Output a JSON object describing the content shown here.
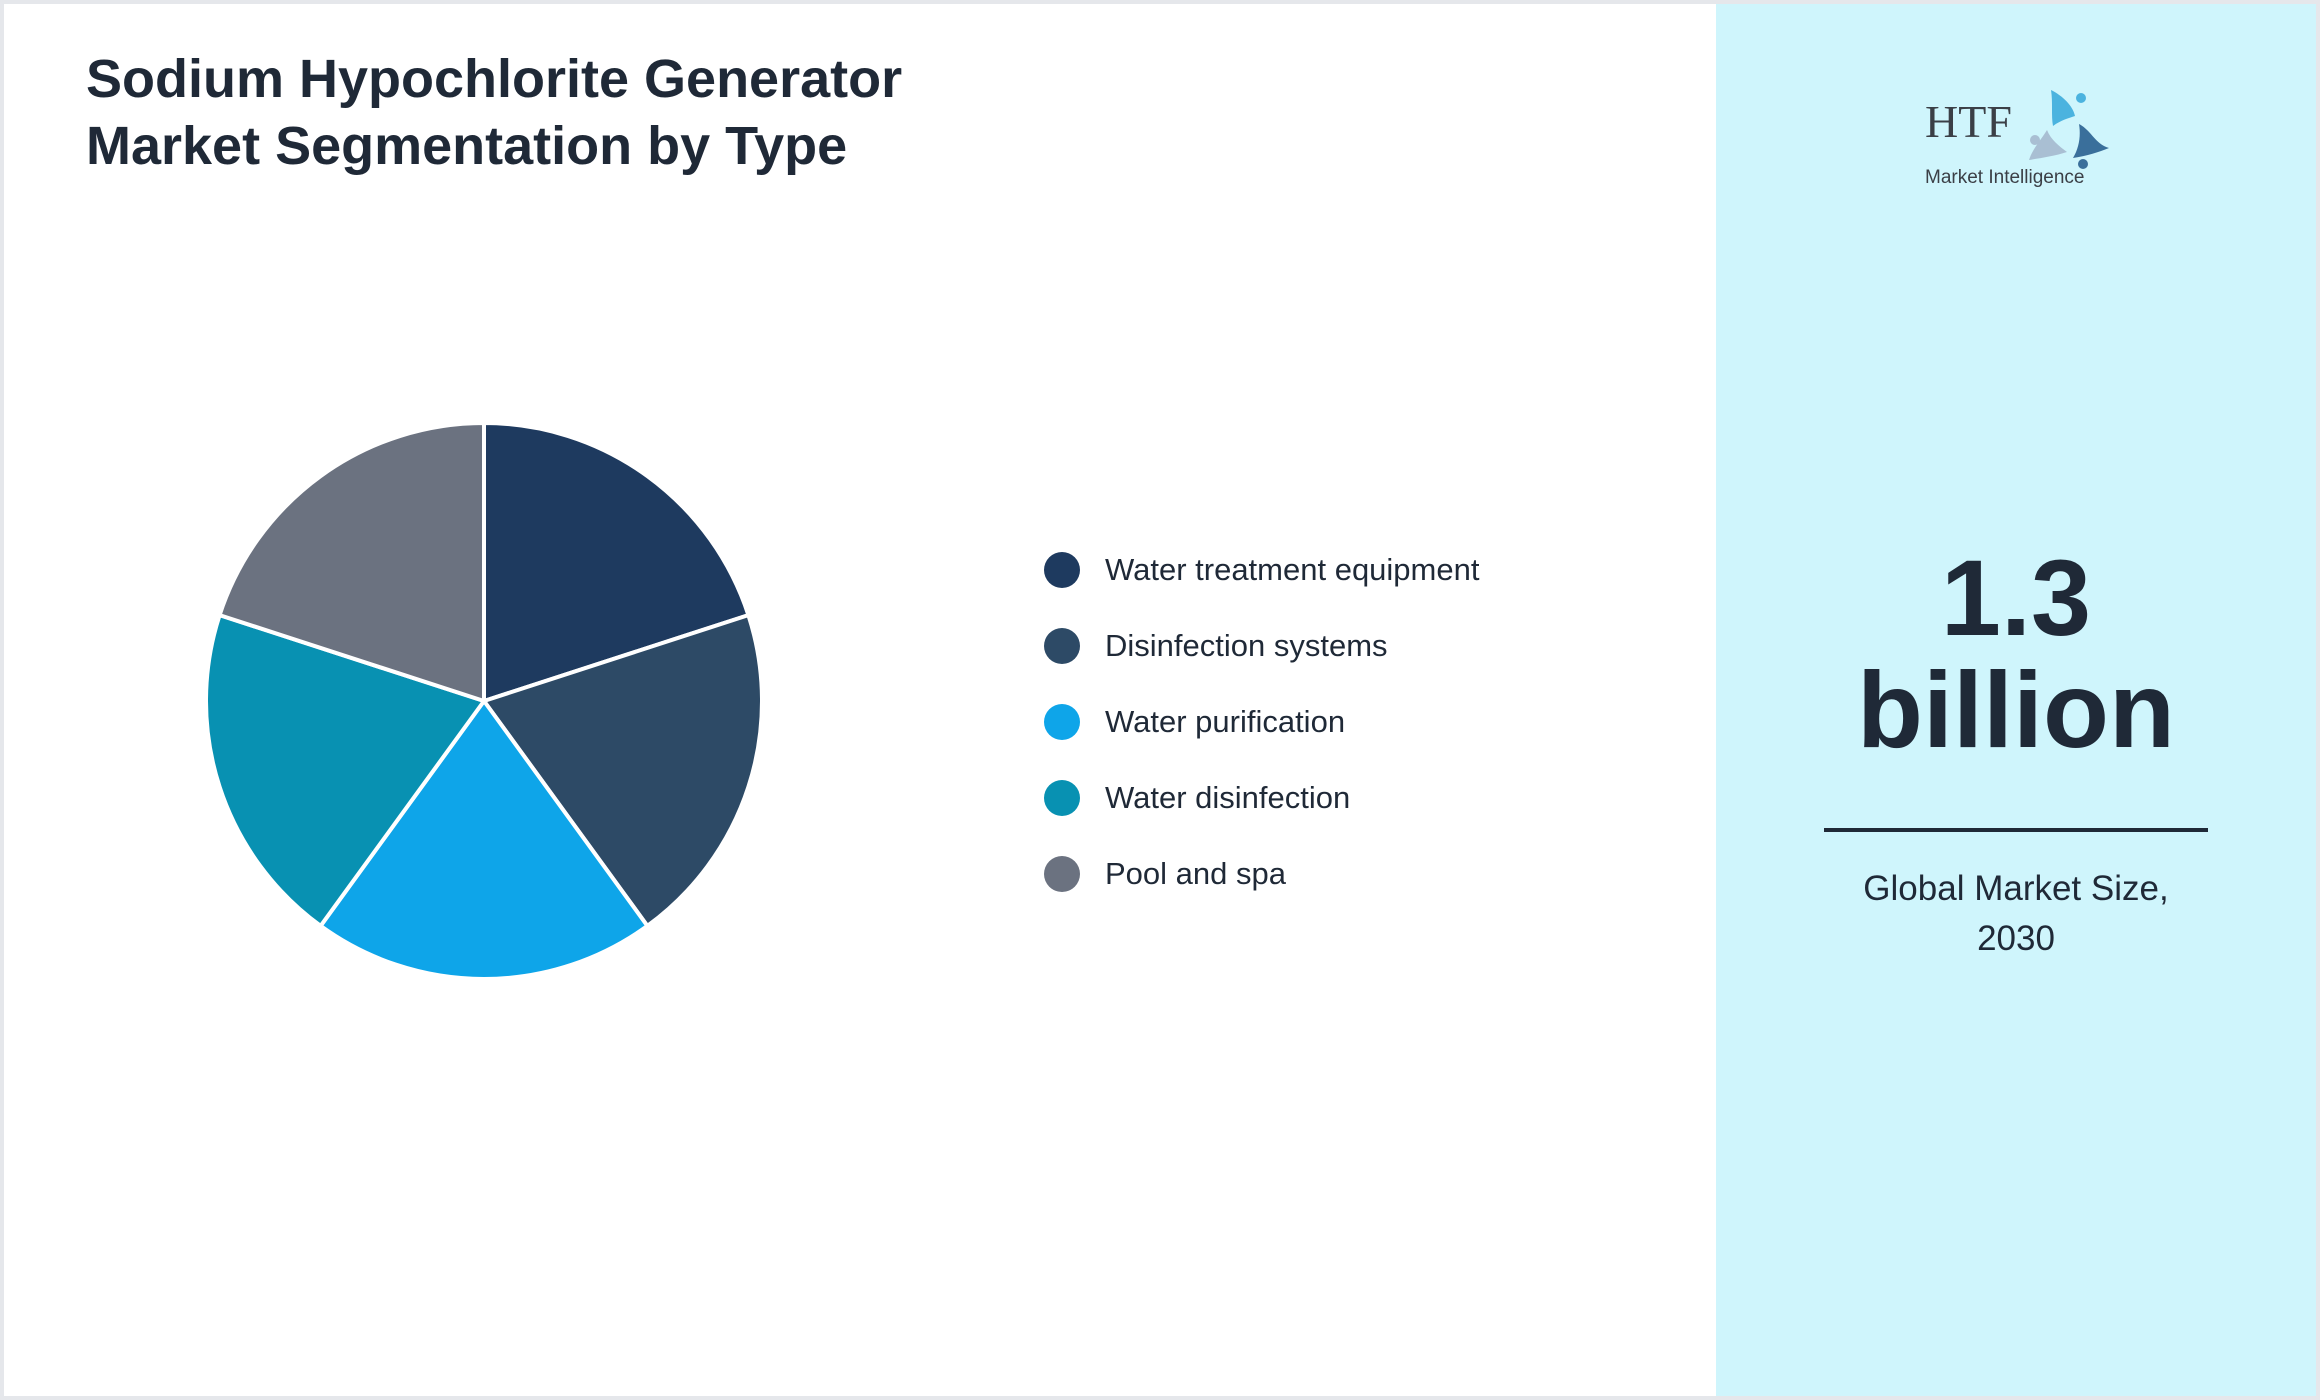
{
  "header": {
    "title_line1": "Sodium Hypochlorite Generator",
    "title_line2": "Market Segmentation by Type"
  },
  "chart_data": {
    "type": "pie",
    "title": "Sodium Hypochlorite Generator Market Segmentation by Type",
    "categories": [
      "Water treatment equipment",
      "Disinfection systems",
      "Water purification",
      "Water disinfection",
      "Pool and spa"
    ],
    "values": [
      20,
      20,
      20,
      20,
      20
    ],
    "colors": [
      "#1e3a5f",
      "#2d4a66",
      "#0ea5e9",
      "#0891b2",
      "#6b7280"
    ],
    "start_angle_deg": -90,
    "direction": "clockwise",
    "legend_position": "right"
  },
  "legend": {
    "items": [
      {
        "label": "Water treatment equipment",
        "color": "#1e3a5f"
      },
      {
        "label": "Disinfection systems",
        "color": "#2d4a66"
      },
      {
        "label": "Water purification",
        "color": "#0ea5e9"
      },
      {
        "label": "Water disinfection",
        "color": "#0891b2"
      },
      {
        "label": "Pool and spa",
        "color": "#6b7280"
      }
    ]
  },
  "side_panel": {
    "logo": {
      "mark": "HTF",
      "subtitle": "Market Intelligence"
    },
    "value_line1": "1.3",
    "value_line2": "billion",
    "caption_line1": "Global Market Size,",
    "caption_line2": "2030",
    "background": "#cff5fc"
  }
}
